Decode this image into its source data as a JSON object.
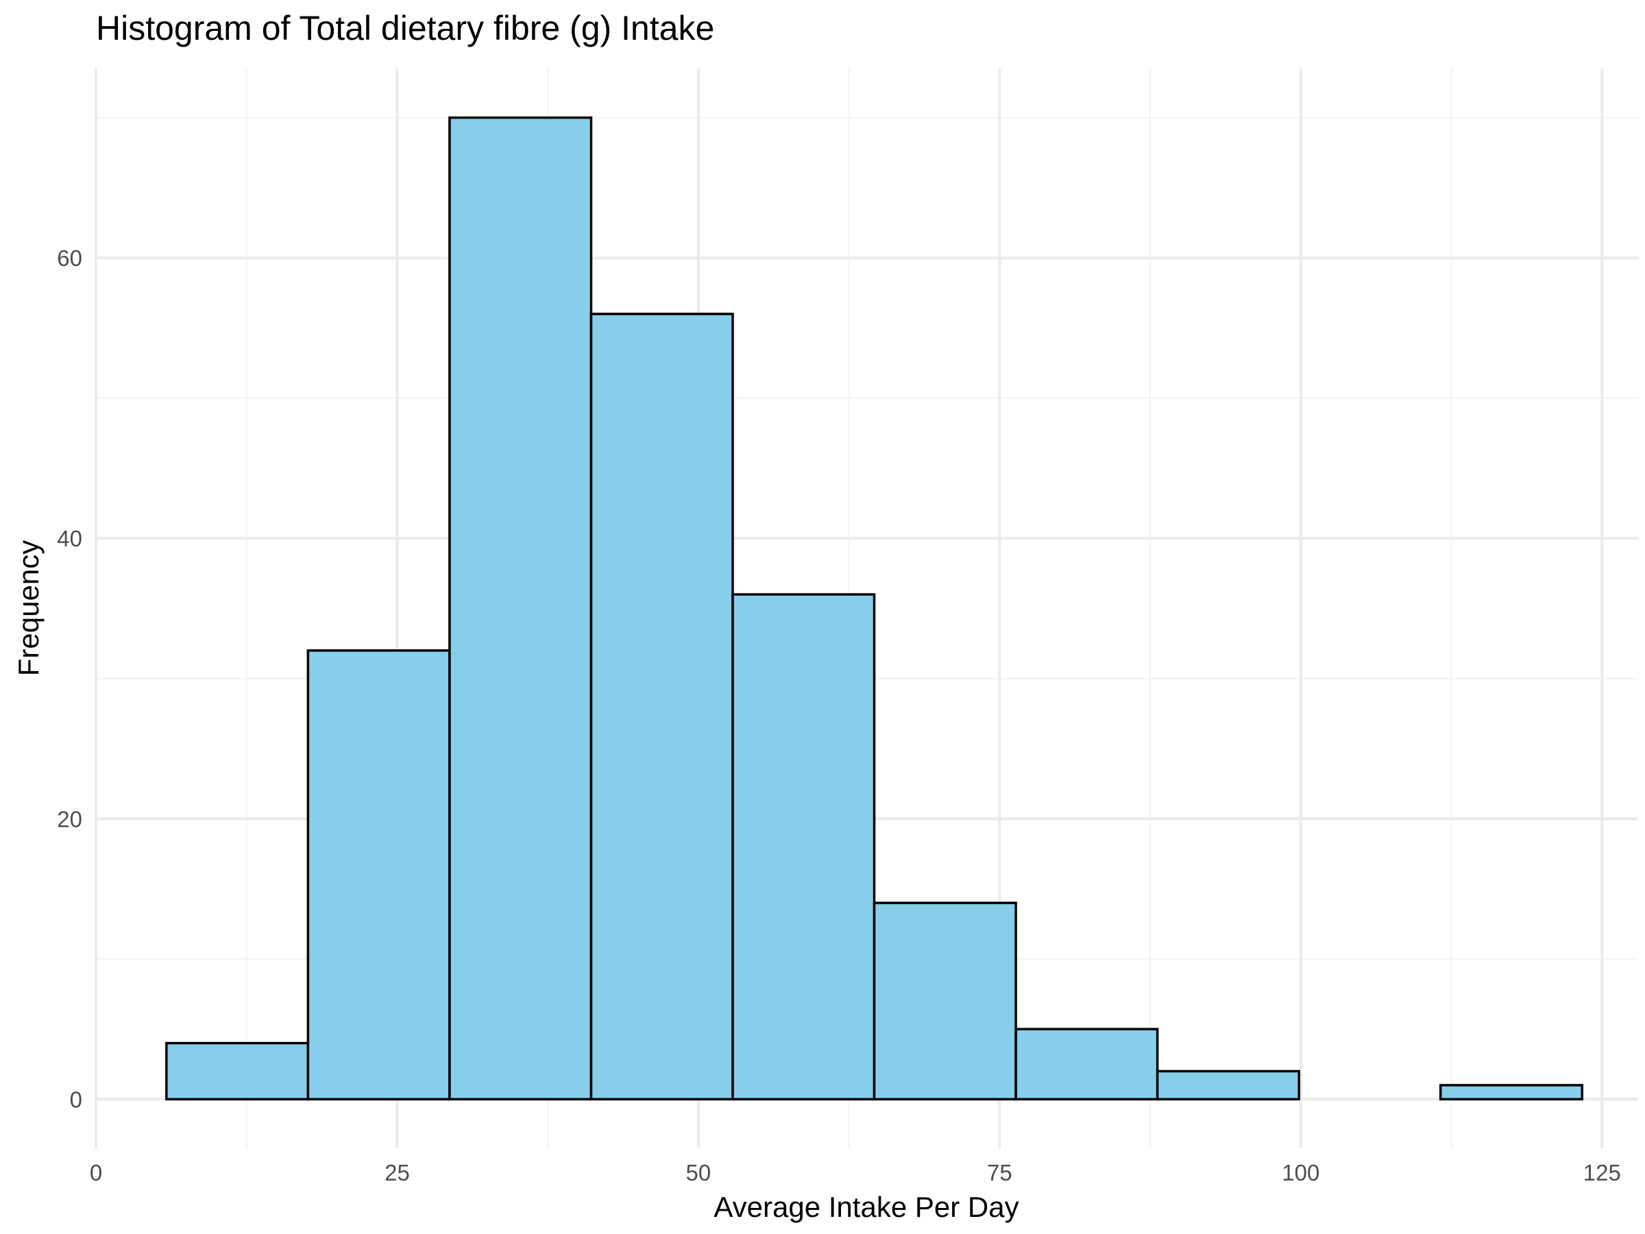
{
  "chart_data": {
    "type": "histogram",
    "title": "Histogram of Total dietary fibre (g) Intake",
    "xlabel": "Average Intake Per Day",
    "ylabel": "Frequency",
    "xlim": [
      0,
      128
    ],
    "ylim": [
      -3.5,
      73.5
    ],
    "x_ticks": [
      0,
      25,
      50,
      75,
      100,
      125
    ],
    "x_tick_labels": [
      "0",
      "25",
      "50",
      "75",
      "100",
      "125"
    ],
    "y_ticks": [
      0,
      20,
      40,
      60
    ],
    "y_tick_labels": [
      "0",
      "20",
      "40",
      "60"
    ],
    "x_minor_ticks": [
      12.5,
      37.5,
      62.5,
      87.5,
      112.5
    ],
    "y_minor_ticks": [
      10,
      30,
      50,
      70
    ],
    "grid": true,
    "bar_fill": "#87ceeb",
    "bar_outline": "#000000",
    "bins": [
      {
        "x_start": 5.85,
        "x_end": 17.6,
        "count": 4
      },
      {
        "x_start": 17.6,
        "x_end": 29.35,
        "count": 32
      },
      {
        "x_start": 29.35,
        "x_end": 41.1,
        "count": 70
      },
      {
        "x_start": 41.1,
        "x_end": 52.85,
        "count": 56
      },
      {
        "x_start": 52.85,
        "x_end": 64.6,
        "count": 36
      },
      {
        "x_start": 64.6,
        "x_end": 76.35,
        "count": 14
      },
      {
        "x_start": 76.35,
        "x_end": 88.1,
        "count": 5
      },
      {
        "x_start": 88.1,
        "x_end": 99.85,
        "count": 2
      },
      {
        "x_start": 99.85,
        "x_end": 111.6,
        "count": 0
      },
      {
        "x_start": 111.6,
        "x_end": 123.35,
        "count": 1
      }
    ]
  }
}
